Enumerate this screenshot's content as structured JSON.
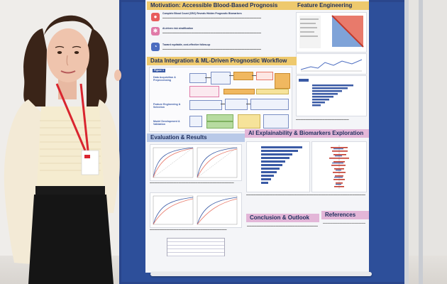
{
  "poster": {
    "motivation_title": "Motivation: Accessible Blood-Based Prognosis",
    "feature_title": "Feature Engineering",
    "workflow_title": "Data Integration & ML-Driven Prognostic Workflow",
    "evaluation_title": "Evaluation & Results",
    "explain_title": "AI Explainability & Biomarkers Exploration",
    "conclusion_title": "Conclusion & Outlook",
    "references_title": "References",
    "motivation_points": [
      "Complete Blood Count (CBC) Reveals Hidden Prognostic Biomarkers",
      "AI-driven risk stratification",
      "Toward equitable, cost-effective follow-up"
    ],
    "figure_label": "Figure 1",
    "workflow_steps": [
      "Data Acquisition & Preprocessing",
      "Feature Engineering & Selection",
      "Model Development & Validation"
    ]
  },
  "colors": {
    "board": "#2d4f9a",
    "poster_bg": "#f4f5f8",
    "header_gold": "#eec96d",
    "header_pink": "#e3b6d8",
    "lanyard": "#d9252f"
  }
}
